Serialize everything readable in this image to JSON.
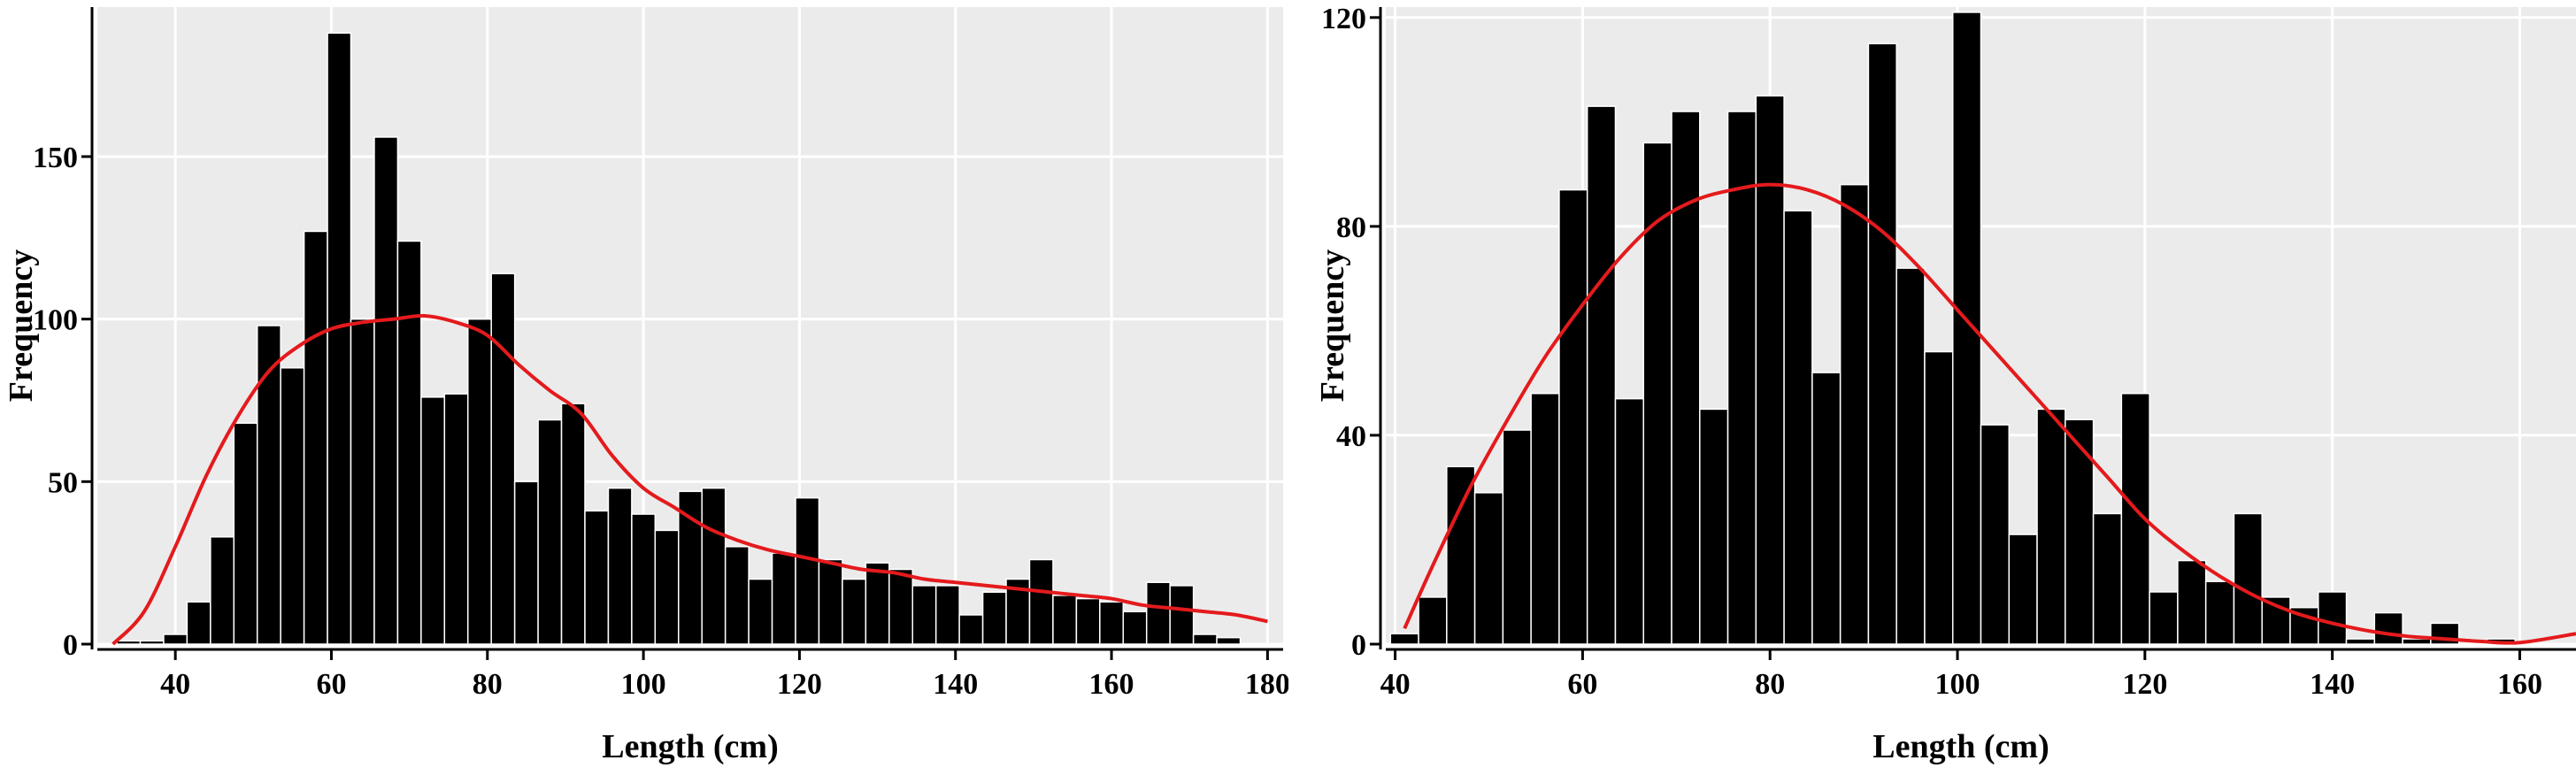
{
  "chart_data": [
    {
      "type": "bar",
      "xlabel": "Length (cm)",
      "ylabel": "Frequency",
      "xlim": [
        30,
        182
      ],
      "ylim": [
        0,
        196
      ],
      "xticks": [
        40,
        60,
        80,
        100,
        120,
        140,
        160,
        180
      ],
      "yticks": [
        0,
        50,
        100,
        150
      ],
      "bin_width": 3,
      "x": [
        34,
        37,
        40,
        43,
        46,
        49,
        52,
        55,
        58,
        61,
        64,
        67,
        70,
        73,
        76,
        79,
        82,
        85,
        88,
        91,
        94,
        97,
        100,
        103,
        106,
        109,
        112,
        115,
        118,
        121,
        124,
        127,
        130,
        133,
        136,
        139,
        142,
        145,
        148,
        151,
        154,
        157,
        160,
        163,
        166,
        169,
        172,
        175
      ],
      "values": [
        1,
        1,
        3,
        13,
        33,
        68,
        98,
        85,
        127,
        188,
        100,
        156,
        124,
        76,
        77,
        100,
        114,
        50,
        69,
        74,
        41,
        48,
        40,
        35,
        47,
        48,
        30,
        20,
        28,
        45,
        26,
        20,
        25,
        23,
        18,
        18,
        9,
        16,
        20,
        26,
        15,
        14,
        13,
        10,
        19,
        18,
        3,
        2
      ],
      "curve": {
        "x": [
          32,
          36,
          40,
          44,
          48,
          52,
          56,
          60,
          64,
          68,
          72,
          76,
          80,
          84,
          88,
          92,
          96,
          100,
          104,
          108,
          112,
          116,
          120,
          124,
          128,
          132,
          136,
          140,
          144,
          148,
          152,
          156,
          160,
          164,
          168,
          172,
          176,
          180
        ],
        "y": [
          0,
          10,
          30,
          52,
          70,
          84,
          92,
          97,
          99,
          100,
          101,
          99,
          95,
          86,
          78,
          71,
          58,
          48,
          42,
          36,
          32,
          29,
          27,
          25,
          23,
          22,
          20,
          19,
          18,
          17,
          16,
          15,
          14,
          12,
          11,
          10,
          9,
          7
        ]
      }
    },
    {
      "type": "bar",
      "xlabel": "Length (cm)",
      "ylabel": "Frequency",
      "xlim": [
        39,
        166
      ],
      "ylim": [
        0,
        122
      ],
      "xticks": [
        40,
        60,
        80,
        100,
        120,
        140,
        160
      ],
      "yticks": [
        0,
        40,
        80,
        120
      ],
      "bin_width": 3,
      "x": [
        41,
        44,
        47,
        50,
        53,
        56,
        59,
        62,
        65,
        68,
        71,
        74,
        77,
        80,
        83,
        86,
        89,
        92,
        95,
        98,
        101,
        104,
        107,
        110,
        113,
        116,
        119,
        122,
        125,
        128,
        131,
        134,
        137,
        140,
        143,
        146,
        149,
        152,
        155,
        158,
        161,
        164
      ],
      "values": [
        2,
        9,
        34,
        29,
        41,
        48,
        87,
        103,
        47,
        96,
        102,
        45,
        102,
        105,
        83,
        52,
        88,
        115,
        72,
        56,
        121,
        42,
        21,
        45,
        43,
        25,
        48,
        10,
        16,
        12,
        25,
        9,
        7,
        10,
        1,
        6,
        1,
        4,
        0,
        1,
        0,
        0
      ],
      "curve": {
        "x": [
          41,
          44,
          48,
          52,
          56,
          60,
          64,
          68,
          72,
          76,
          80,
          84,
          88,
          92,
          96,
          100,
          104,
          108,
          112,
          116,
          120,
          124,
          128,
          132,
          136,
          140,
          144,
          148,
          152,
          156,
          160,
          166
        ],
        "y": [
          3,
          15,
          30,
          43,
          55,
          65,
          74,
          81,
          85,
          87,
          88,
          87,
          84,
          79,
          72,
          64,
          56,
          48,
          40,
          32,
          24,
          18,
          13,
          9,
          6,
          4,
          2.5,
          1.5,
          1,
          0.5,
          0.3,
          2
        ]
      }
    }
  ]
}
